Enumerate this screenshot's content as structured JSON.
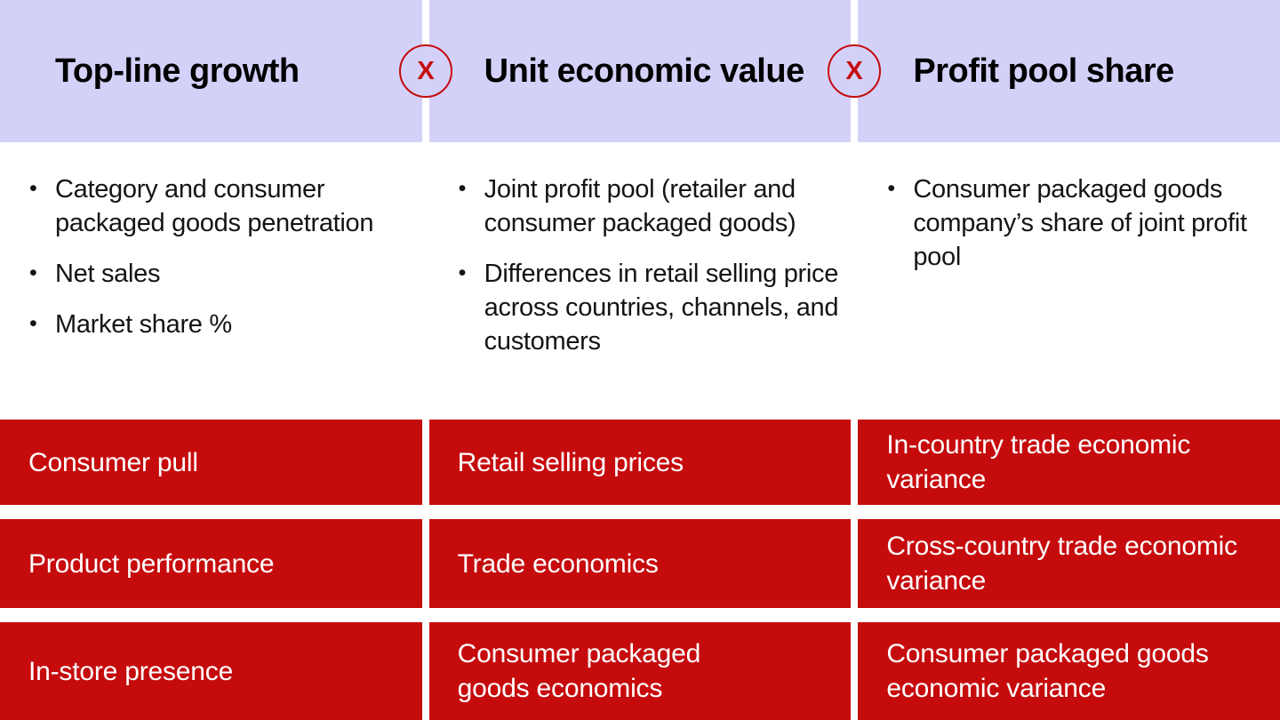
{
  "colors": {
    "header_background": "#d3d1f8",
    "accent_red": "#c60b0d",
    "body_text": "#141414",
    "driver_text": "#ffffff"
  },
  "operators": {
    "first": "X",
    "second": "X"
  },
  "columns": [
    {
      "header": "Top-line growth",
      "bullets": [
        "Category and consumer packaged goods penetration",
        "Net sales",
        "Market share %"
      ],
      "drivers": [
        "Consumer pull",
        "Product performance",
        "In-store presence"
      ]
    },
    {
      "header": "Unit economic value",
      "bullets": [
        "Joint profit pool (retailer and consumer packaged goods)",
        "Differences in retail selling price across countries, channels, and customers"
      ],
      "drivers": [
        "Retail selling prices",
        "Trade economics",
        "Consumer packaged goods economics"
      ]
    },
    {
      "header": "Profit pool share",
      "bullets": [
        "Consumer packaged goods company’s share of joint profit pool"
      ],
      "drivers": [
        "In-country trade economic variance",
        "Cross-country trade economic variance",
        "Consumer packaged goods economic variance"
      ]
    }
  ]
}
